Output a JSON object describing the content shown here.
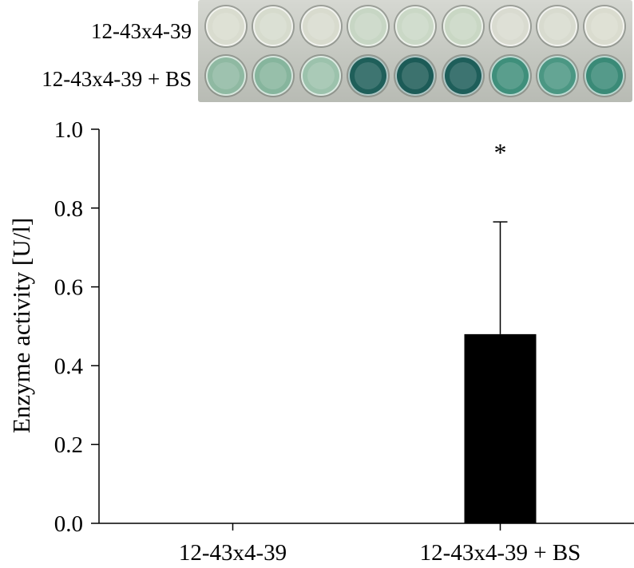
{
  "figure": {
    "row_labels": [
      "12-43x4-39",
      "12-43x4-39 + BS"
    ],
    "plate_rows": [
      {
        "name": "12-43x4-39",
        "well_colors": [
          "#d9dccf",
          "#d6dbcd",
          "#d8dbce",
          "#c7d6c4",
          "#cad8c6",
          "#c9d7c4",
          "#d9dbd0",
          "#d8dbcf",
          "#dadccf"
        ]
      },
      {
        "name": "12-43x4-39 + BS",
        "well_colors": [
          "#8fb9a2",
          "#86b59d",
          "#9cc2ac",
          "#1f5f5a",
          "#1c5b57",
          "#1e5e5a",
          "#3f8f7b",
          "#4b9783",
          "#3a8a77"
        ]
      }
    ]
  },
  "chart_data": {
    "type": "bar",
    "categories": [
      "12-43x4-39",
      "12-43x4-39 + BS"
    ],
    "values": [
      0.0,
      0.48
    ],
    "error_bars": [
      0.0,
      0.285
    ],
    "annotations": [
      {
        "category": "12-43x4-39 + BS",
        "text": "*"
      }
    ],
    "title": "",
    "xlabel": "",
    "ylabel": "Enzyme activity [U/l]",
    "ylim": [
      0.0,
      1.0
    ],
    "yticks": [
      "0.0",
      "0.2",
      "0.4",
      "0.6",
      "0.8",
      "1.0"
    ],
    "grid": false,
    "bar_color": "#000000"
  }
}
